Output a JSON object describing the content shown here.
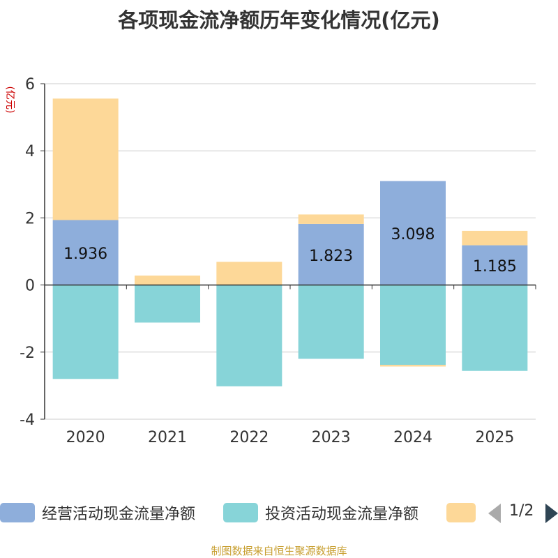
{
  "chart_data": {
    "type": "bar",
    "stacked": true,
    "title": "各项现金流净额历年变化情况(亿元)",
    "ylabel": "(亿元)",
    "xlabel": "",
    "ylim": [
      -4,
      6
    ],
    "yticks": [
      -4,
      -2,
      0,
      2,
      4,
      6
    ],
    "categories": [
      "2020",
      "2021",
      "2022",
      "2023",
      "2024",
      "2025"
    ],
    "series": [
      {
        "name": "经营活动现金流量净额",
        "color": "#8eaedb",
        "values": [
          1.936,
          0.01,
          0.01,
          1.823,
          3.098,
          1.185
        ],
        "labels": [
          "1.936",
          "",
          "",
          "1.823",
          "3.098",
          "1.185"
        ]
      },
      {
        "name": "投资活动现金流量净额",
        "color": "#87d4d8",
        "values": [
          -2.8,
          -1.12,
          -3.02,
          -2.2,
          -2.38,
          -2.56
        ]
      },
      {
        "name": "",
        "color": "#fdd898",
        "values": [
          3.62,
          0.27,
          0.68,
          0.28,
          -0.05,
          0.43
        ]
      }
    ],
    "legend_position": "bottom",
    "grid": true
  },
  "legend": {
    "page": "1/2"
  },
  "footer": {
    "source": "制图数据来自恒生聚源数据库"
  }
}
